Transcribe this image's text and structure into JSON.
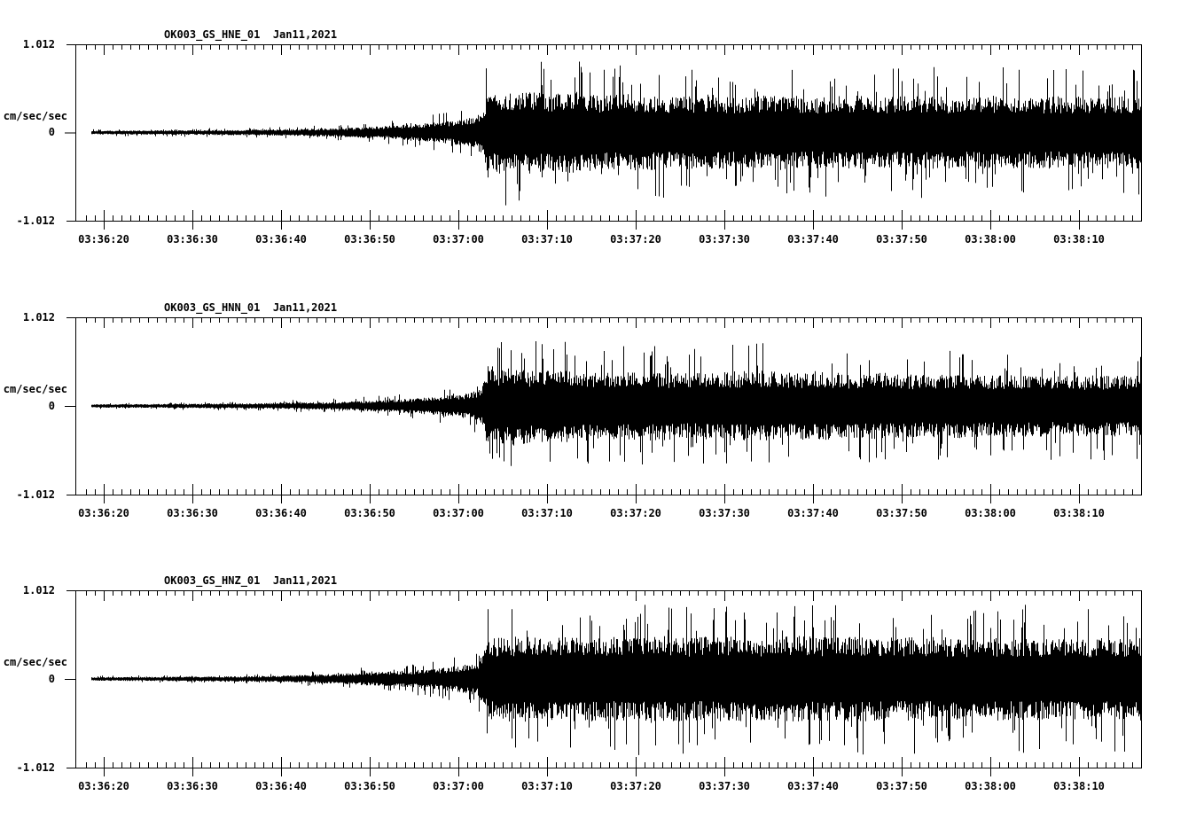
{
  "figure": {
    "background": "#ffffff",
    "ink": "#000000",
    "description": "Three stacked strong-motion seismogram panels, station OK003, Jan 11 2021"
  },
  "chart_data": [
    {
      "type": "line",
      "subtype": "seismogram",
      "title": "OK003_GS_HNE_01  Jan11,2021",
      "ylabel": "cm/sec/sec",
      "ytick_labels": [
        "1.012",
        "0",
        "-1.012"
      ],
      "ylim": [
        -1.012,
        1.012
      ],
      "xtick_labels": [
        "03:36:20",
        "03:36:30",
        "03:36:40",
        "03:36:50",
        "03:37:00",
        "03:37:10",
        "03:37:20",
        "03:37:30",
        "03:37:40",
        "03:37:50",
        "03:38:00",
        "03:38:10"
      ],
      "xtick_seconds": [
        20,
        30,
        40,
        50,
        60,
        70,
        80,
        90,
        100,
        110,
        120,
        130
      ],
      "x_window_seconds_after_03_36_00": [
        16.8,
        137.0
      ],
      "minor_tick_interval_seconds": 1,
      "grid": false,
      "legend": false,
      "quiet_noise_amplitude": 0.025,
      "strong_motion_onset": "03:37:02",
      "peak_amplitude_approx": 0.85,
      "envelope_s_amp": [
        [
          17,
          0.022
        ],
        [
          25,
          0.026
        ],
        [
          35,
          0.032
        ],
        [
          42,
          0.042
        ],
        [
          48,
          0.06
        ],
        [
          52,
          0.08
        ],
        [
          56,
          0.11
        ],
        [
          60,
          0.15
        ],
        [
          62,
          0.19
        ],
        [
          62.8,
          0.3
        ],
        [
          63.3,
          0.55
        ],
        [
          64,
          0.48
        ],
        [
          65,
          0.52
        ],
        [
          66.5,
          0.45
        ],
        [
          68,
          0.52
        ],
        [
          70,
          0.46
        ],
        [
          73,
          0.5
        ],
        [
          76,
          0.44
        ],
        [
          80,
          0.48
        ],
        [
          84,
          0.43
        ],
        [
          88,
          0.46
        ],
        [
          92,
          0.43
        ],
        [
          96,
          0.46
        ],
        [
          100,
          0.43
        ],
        [
          104,
          0.45
        ],
        [
          108,
          0.43
        ],
        [
          112,
          0.45
        ],
        [
          116,
          0.43
        ],
        [
          120,
          0.45
        ],
        [
          124,
          0.43
        ],
        [
          128,
          0.44
        ],
        [
          132,
          0.43
        ],
        [
          137,
          0.44
        ]
      ]
    },
    {
      "type": "line",
      "subtype": "seismogram",
      "title": "OK003_GS_HNN_01  Jan11,2021",
      "ylabel": "cm/sec/sec",
      "ytick_labels": [
        "1.012",
        "0",
        "-1.012"
      ],
      "ylim": [
        -1.012,
        1.012
      ],
      "xtick_labels": [
        "03:36:20",
        "03:36:30",
        "03:36:40",
        "03:36:50",
        "03:37:00",
        "03:37:10",
        "03:37:20",
        "03:37:30",
        "03:37:40",
        "03:37:50",
        "03:38:00",
        "03:38:10"
      ],
      "xtick_seconds": [
        20,
        30,
        40,
        50,
        60,
        70,
        80,
        90,
        100,
        110,
        120,
        130
      ],
      "x_window_seconds_after_03_36_00": [
        16.8,
        137.0
      ],
      "minor_tick_interval_seconds": 1,
      "grid": false,
      "legend": false,
      "quiet_noise_amplitude": 0.024,
      "strong_motion_onset": "03:37:02",
      "peak_amplitude_approx": 0.88,
      "envelope_s_amp": [
        [
          17,
          0.02
        ],
        [
          25,
          0.024
        ],
        [
          35,
          0.03
        ],
        [
          42,
          0.04
        ],
        [
          48,
          0.055
        ],
        [
          52,
          0.075
        ],
        [
          56,
          0.1
        ],
        [
          60,
          0.14
        ],
        [
          62,
          0.18
        ],
        [
          62.8,
          0.28
        ],
        [
          63.3,
          0.52
        ],
        [
          64.5,
          0.46
        ],
        [
          66,
          0.5
        ],
        [
          68,
          0.44
        ],
        [
          71,
          0.48
        ],
        [
          74,
          0.42
        ],
        [
          78,
          0.4
        ],
        [
          82,
          0.42
        ],
        [
          86,
          0.39
        ],
        [
          90,
          0.41
        ],
        [
          94,
          0.43
        ],
        [
          98,
          0.4
        ],
        [
          100,
          0.42
        ],
        [
          104,
          0.39
        ],
        [
          108,
          0.4
        ],
        [
          112,
          0.37
        ],
        [
          116,
          0.39
        ],
        [
          120,
          0.37
        ],
        [
          124,
          0.38
        ],
        [
          128,
          0.36
        ],
        [
          132,
          0.37
        ],
        [
          137,
          0.37
        ]
      ]
    },
    {
      "type": "line",
      "subtype": "seismogram",
      "title": "OK003_GS_HNZ_01  Jan11,2021",
      "ylabel": "cm/sec/sec",
      "ytick_labels": [
        "1.012",
        "0",
        "-1.012"
      ],
      "ylim": [
        -1.012,
        1.012
      ],
      "xtick_labels": [
        "03:36:20",
        "03:36:30",
        "03:36:40",
        "03:36:50",
        "03:37:00",
        "03:37:10",
        "03:37:20",
        "03:37:30",
        "03:37:40",
        "03:37:50",
        "03:38:00",
        "03:38:10"
      ],
      "xtick_seconds": [
        20,
        30,
        40,
        50,
        60,
        70,
        80,
        90,
        100,
        110,
        120,
        130
      ],
      "x_window_seconds_after_03_36_00": [
        16.8,
        137.0
      ],
      "minor_tick_interval_seconds": 1,
      "grid": false,
      "legend": false,
      "quiet_noise_amplitude": 0.023,
      "strong_motion_onset": "03:37:01",
      "peak_amplitude_approx": 0.88,
      "envelope_s_amp": [
        [
          17,
          0.02
        ],
        [
          25,
          0.025
        ],
        [
          35,
          0.032
        ],
        [
          42,
          0.045
        ],
        [
          46,
          0.06
        ],
        [
          50,
          0.08
        ],
        [
          54,
          0.1
        ],
        [
          58,
          0.13
        ],
        [
          60,
          0.16
        ],
        [
          62,
          0.2
        ],
        [
          62.8,
          0.32
        ],
        [
          63.3,
          0.52
        ],
        [
          64.5,
          0.5
        ],
        [
          67,
          0.53
        ],
        [
          70,
          0.5
        ],
        [
          74,
          0.53
        ],
        [
          78,
          0.5
        ],
        [
          82,
          0.53
        ],
        [
          86,
          0.5
        ],
        [
          90,
          0.52
        ],
        [
          94,
          0.5
        ],
        [
          98,
          0.52
        ],
        [
          102,
          0.5
        ],
        [
          106,
          0.52
        ],
        [
          110,
          0.5
        ],
        [
          114,
          0.51
        ],
        [
          118,
          0.49
        ],
        [
          122,
          0.51
        ],
        [
          126,
          0.49
        ],
        [
          130,
          0.5
        ],
        [
          134,
          0.49
        ],
        [
          137,
          0.5
        ]
      ]
    }
  ]
}
